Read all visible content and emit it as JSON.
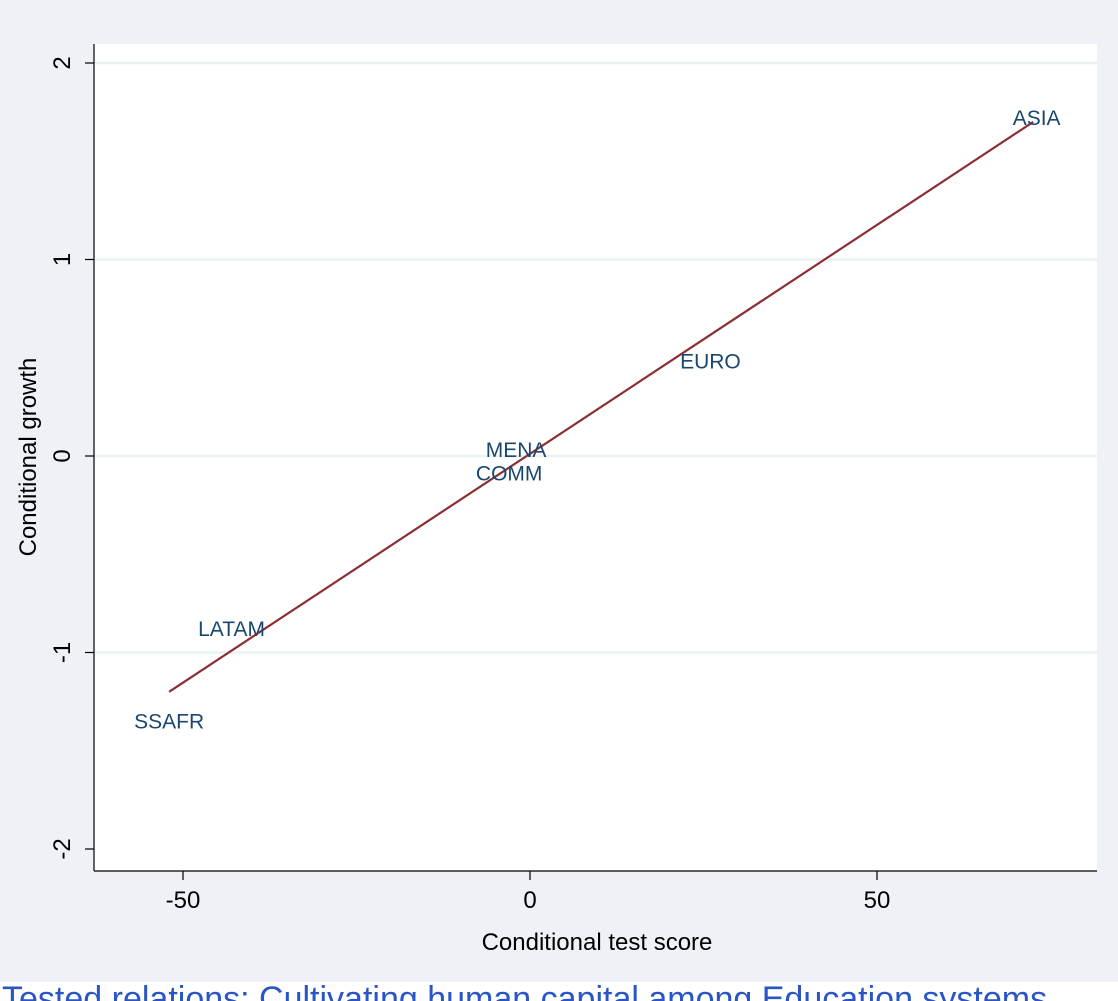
{
  "colors": {
    "outer_background": "#eef1f6",
    "plot_background": "#ffffff",
    "gridline": "#eaf2f3",
    "fit_line": "#8b2f33",
    "label": "#1a476f",
    "caption": "#2a55c4"
  },
  "caption": "Tested relations: Cultivating human capital among Education systems",
  "chart_data": {
    "type": "scatter",
    "xlabel": "Conditional test score",
    "ylabel": "Conditional growth",
    "xlim": [
      -63,
      80
    ],
    "ylim": [
      -2.1,
      2.1
    ],
    "xticks": [
      -50,
      0,
      50
    ],
    "yticks": [
      -2,
      -1,
      0,
      1,
      2
    ],
    "grid": true,
    "points": [
      {
        "label": "ASIA",
        "x": 73,
        "y": 1.72
      },
      {
        "label": "EURO",
        "x": 26,
        "y": 0.48
      },
      {
        "label": "MENA",
        "x": -2,
        "y": 0.03
      },
      {
        "label": "COMM",
        "x": -3,
        "y": -0.09
      },
      {
        "label": "LATAM",
        "x": -43,
        "y": -0.88
      },
      {
        "label": "SSAFR",
        "x": -52,
        "y": -1.35
      }
    ],
    "fit_line": {
      "x": [
        -52,
        72.5
      ],
      "y": [
        -1.2,
        1.7
      ]
    }
  }
}
